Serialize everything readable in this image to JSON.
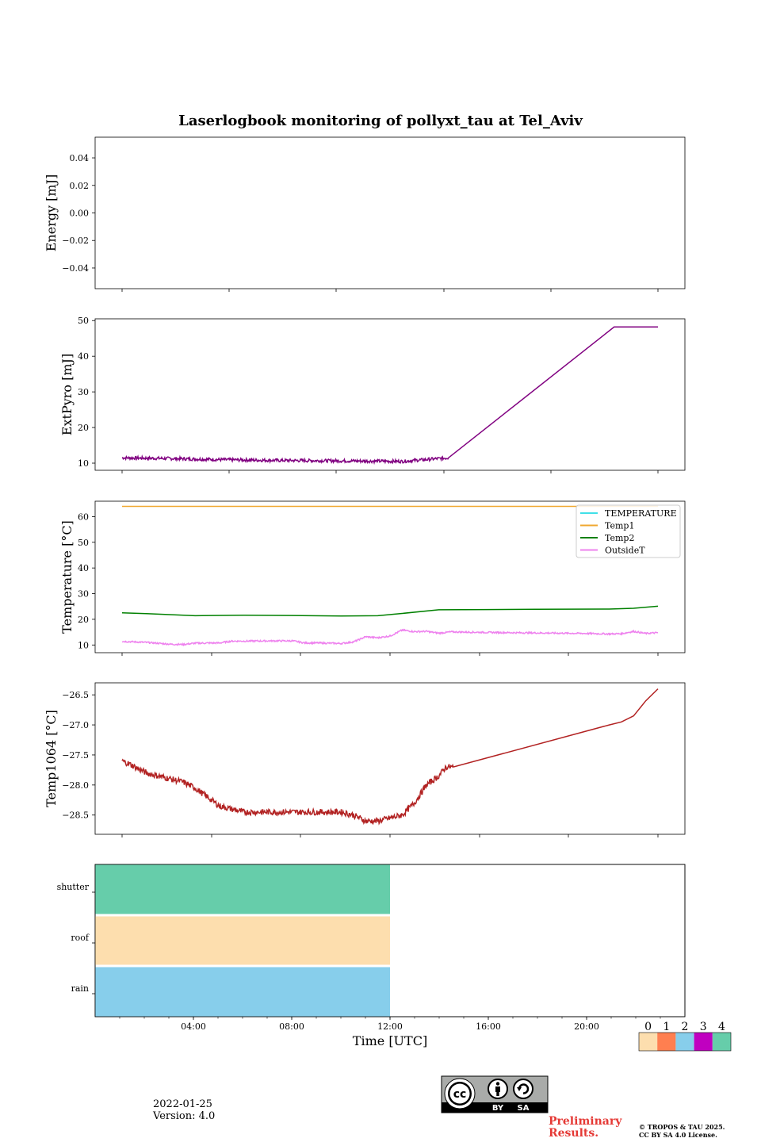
{
  "chart_data": [
    {
      "type": "line",
      "title": "Laserlogbook monitoring of pollyxt_tau at Tel_Aviv",
      "ylabel": "Energy [mJ]",
      "ylim": [
        -0.055,
        0.055
      ],
      "yticks": [
        0.04,
        0.02,
        0.0,
        -0.02,
        -0.04
      ],
      "ytick_labels": [
        "0.04",
        "0.02",
        "0.00",
        "−0.02",
        "−0.04"
      ],
      "series": []
    },
    {
      "type": "line",
      "ylabel": "ExtPyro [mJ]",
      "ylim": [
        8,
        50.5
      ],
      "yticks": [
        10,
        20,
        30,
        40,
        50
      ],
      "series": [
        {
          "color": "#800080",
          "x": [
            1.0,
            3,
            5,
            7,
            9,
            11,
            12.5,
            14.4,
            21.2,
            22.0,
            23.0
          ],
          "y": [
            11.5,
            11.3,
            11.0,
            10.8,
            10.7,
            10.6,
            10.5,
            11.5,
            48.2,
            48.2,
            48.2
          ],
          "noise": 0.45,
          "noise_until": 14.4
        }
      ]
    },
    {
      "type": "line",
      "ylabel": "Temperature [°C]",
      "ylim": [
        7,
        66
      ],
      "yticks": [
        10,
        20,
        30,
        40,
        50,
        60
      ],
      "legend": "top-right",
      "series": [
        {
          "name": "TEMPERATURE",
          "color": "#40e0e8",
          "x": [],
          "y": []
        },
        {
          "name": "Temp1",
          "color": "#f0a830",
          "x": [
            1.0,
            23.0
          ],
          "y": [
            64,
            64
          ]
        },
        {
          "name": "Temp2",
          "color": "#008000",
          "x": [
            1.0,
            2,
            4,
            6,
            8,
            10,
            11.5,
            12.5,
            14,
            16,
            18,
            21,
            22,
            23.0
          ],
          "y": [
            22.5,
            22.2,
            21.4,
            21.6,
            21.5,
            21.3,
            21.4,
            22.3,
            23.7,
            23.8,
            23.9,
            24.0,
            24.3,
            25.1
          ]
        },
        {
          "name": "OutsideT",
          "color": "#ee82ee",
          "x": [
            1.0,
            2,
            3,
            3.5,
            4,
            5,
            5.5,
            6,
            7,
            8,
            8.5,
            9,
            10,
            10.5,
            11,
            11.5,
            12,
            12.5,
            13,
            13.5,
            14,
            14.5,
            16,
            18,
            20,
            21,
            21.5,
            22,
            22.5,
            23.0
          ],
          "y": [
            11.4,
            11.0,
            10.3,
            10.2,
            10.7,
            10.8,
            11.5,
            11.5,
            11.6,
            11.6,
            10.8,
            10.8,
            10.6,
            11.2,
            13.2,
            12.8,
            13.5,
            15.8,
            15.2,
            15.3,
            14.6,
            15.1,
            14.9,
            14.7,
            14.5,
            14.3,
            14.4,
            15.3,
            14.5,
            14.8
          ],
          "noise": 0.3
        }
      ]
    },
    {
      "type": "line",
      "ylabel": "Temp1064 [°C]",
      "ylim": [
        -28.82,
        -26.3
      ],
      "yticks": [
        -26.5,
        -27.0,
        -27.5,
        -28.0,
        -28.5
      ],
      "ytick_labels": [
        "−26.5",
        "−27.0",
        "−27.5",
        "−28.0",
        "−28.5"
      ],
      "series": [
        {
          "color": "#b22222",
          "x": [
            1.0,
            1.3,
            2,
            3,
            3.5,
            4,
            4.5,
            5,
            6,
            7,
            8,
            9,
            10,
            10.5,
            11,
            11.5,
            12,
            12.5,
            13,
            13.5,
            14,
            14.3,
            14.6,
            21.0,
            21.5,
            22,
            22.5,
            23.0
          ],
          "y": [
            -27.6,
            -27.65,
            -27.8,
            -27.9,
            -27.95,
            -28.05,
            -28.2,
            -28.35,
            -28.45,
            -28.45,
            -28.45,
            -28.45,
            -28.45,
            -28.5,
            -28.6,
            -28.6,
            -28.55,
            -28.5,
            -28.3,
            -28.0,
            -27.85,
            -27.7,
            -27.7,
            -27.0,
            -26.95,
            -26.85,
            -26.6,
            -26.4
          ],
          "noise": 0.05,
          "noise_until": 14.6
        }
      ]
    },
    {
      "type": "heatmap",
      "categories": [
        "shutter",
        "roof",
        "rain"
      ],
      "x_range": [
        0,
        24
      ],
      "xticks": [
        4,
        8,
        12,
        16,
        20
      ],
      "xtick_labels": [
        "04:00",
        "08:00",
        "12:00",
        "16:00",
        "20:00"
      ],
      "xlabel": "Time [UTC]",
      "cells": [
        {
          "category": "shutter",
          "x0": 0,
          "x1": 12,
          "value": 4
        },
        {
          "category": "roof",
          "x0": 0,
          "x1": 12,
          "value": 0
        },
        {
          "category": "rain",
          "x0": 0,
          "x1": 12,
          "value": 2
        }
      ],
      "colorbar": {
        "labels": [
          "0",
          "1",
          "2",
          "3",
          "4"
        ],
        "colors": [
          "#fddeae",
          "#ff7f50",
          "#87ceeb",
          "#c000c0",
          "#66cdaa"
        ]
      }
    }
  ],
  "footer": {
    "date": "2022-01-25",
    "version": "Version: 4.0",
    "prelim_line1": "Preliminary",
    "prelim_line2": "Results.",
    "copyright_line1": "© TROPOS & TAU 2025.",
    "copyright_line2": "CC BY SA 4.0 License.",
    "cc_by": "BY",
    "cc_sa": "SA"
  }
}
